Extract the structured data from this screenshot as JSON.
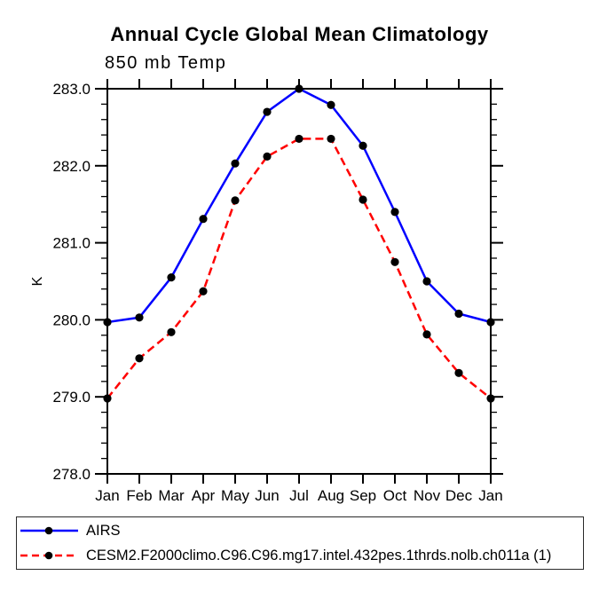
{
  "chart_data": {
    "type": "line",
    "title": "Annual Cycle Global Mean Climatology",
    "subtitle": "850 mb Temp",
    "ylabel": "K",
    "x_categories": [
      "Jan",
      "Feb",
      "Mar",
      "Apr",
      "May",
      "Jun",
      "Jul",
      "Aug",
      "Sep",
      "Oct",
      "Nov",
      "Dec",
      "Jan"
    ],
    "ylim": [
      278.0,
      283.0
    ],
    "ytick_step_major": 1.0,
    "ytick_step_minor": 0.2,
    "ytick_labels": [
      "278.0",
      "279.0",
      "280.0",
      "281.0",
      "282.0",
      "283.0"
    ],
    "grid": false,
    "legend_position": "bottom-outside",
    "series": [
      {
        "name": "AIRS",
        "color": "#0000ff",
        "line_style": "solid",
        "marker": "filled-circle",
        "marker_color": "#000000",
        "values": [
          279.97,
          280.03,
          280.55,
          281.31,
          282.03,
          282.7,
          283.0,
          282.79,
          282.26,
          281.4,
          280.5,
          280.08,
          279.97
        ]
      },
      {
        "name": "CESM2.F2000climo.C96.C96.mg17.intel.432pes.1thrds.nolb.ch011a (1)",
        "color": "#ff0000",
        "line_style": "dashed",
        "marker": "filled-circle",
        "marker_color": "#000000",
        "values": [
          278.98,
          279.5,
          279.84,
          280.37,
          281.55,
          282.12,
          282.35,
          282.35,
          281.56,
          280.75,
          279.81,
          279.31,
          278.98
        ]
      }
    ]
  }
}
